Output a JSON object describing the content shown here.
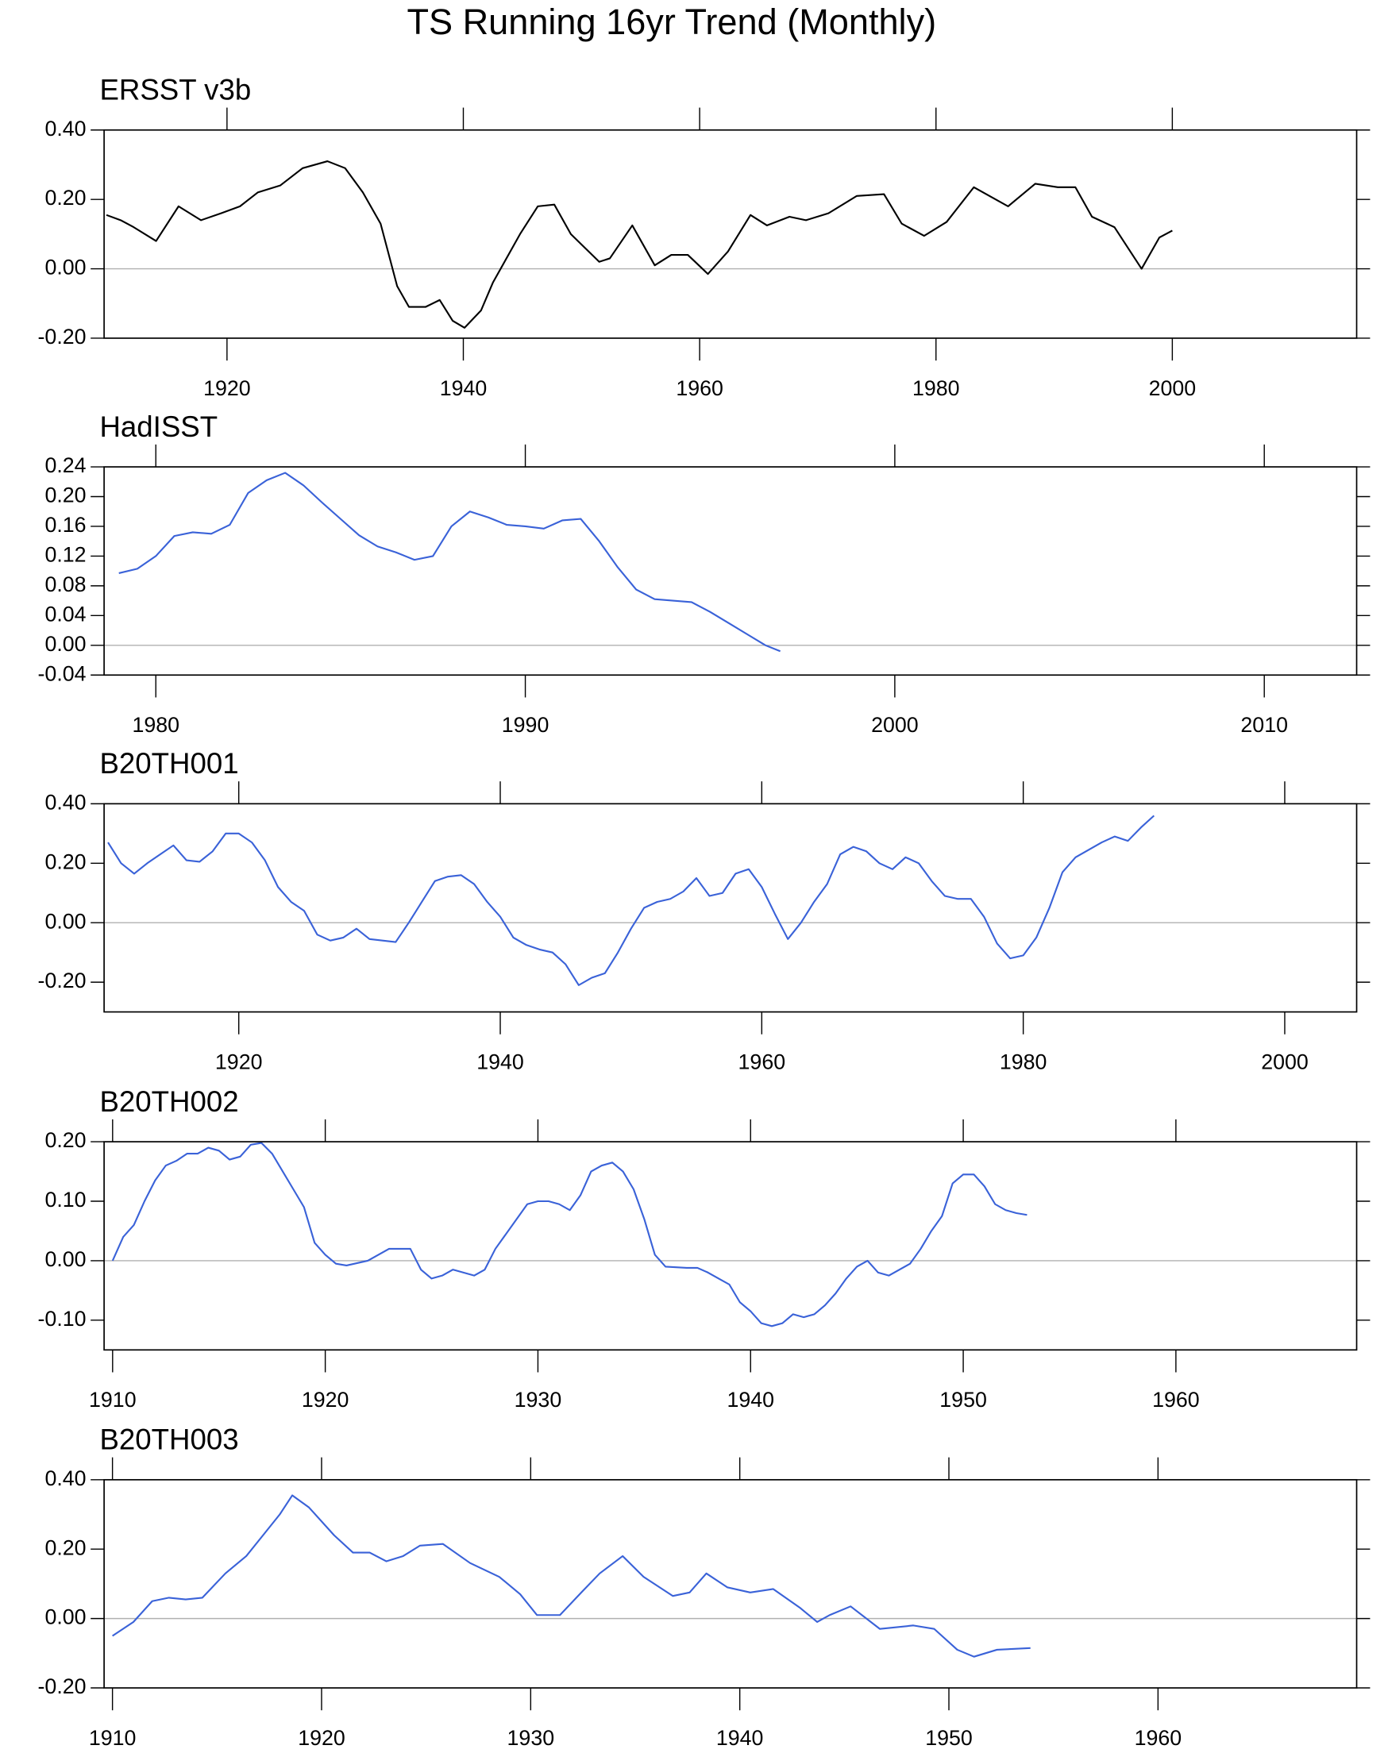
{
  "title": "TS Running 16yr Trend (Monthly)",
  "chart_data": [
    {
      "type": "line",
      "title": "ERSST v3b",
      "color": "#000000",
      "zero_line": true,
      "xlim": [
        1909.6,
        2015.6
      ],
      "xticks": [
        1920,
        1940,
        1960,
        1980,
        2000
      ],
      "ylim": [
        -0.2,
        0.4
      ],
      "yticks": [
        {
          "value": -0.2,
          "label": "-0.20"
        },
        {
          "value": 0,
          "label": "0.00"
        },
        {
          "value": 0.2,
          "label": "0.20"
        },
        {
          "value": 0.4,
          "label": "0.40"
        }
      ],
      "x": [
        1909.8,
        1911,
        1912.1,
        1914,
        1915.9,
        1917.8,
        1919.5,
        1921.1,
        1922.6,
        1924.5,
        1926.4,
        1928.5,
        1930,
        1931.5,
        1933,
        1934.4,
        1935.4,
        1936.8,
        1938,
        1939.1,
        1940.1,
        1941.5,
        1942.5,
        1944.8,
        1946.3,
        1947.7,
        1949.1,
        1951.5,
        1952.4,
        1954.3,
        1956.2,
        1957.6,
        1959,
        1960.7,
        1962.4,
        1964.3,
        1965.7,
        1967.6,
        1969,
        1970.9,
        1973.3,
        1975.6,
        1977.1,
        1979,
        1980.9,
        1983.2,
        1986.1,
        1988.4,
        1990.3,
        1991.8,
        1993.2,
        1995.1,
        1997.4,
        1998.9,
        2000
      ],
      "values": [
        0.155,
        0.14,
        0.12,
        0.08,
        0.18,
        0.14,
        0.16,
        0.18,
        0.22,
        0.24,
        0.29,
        0.31,
        0.29,
        0.22,
        0.13,
        -0.05,
        -0.11,
        -0.11,
        -0.09,
        -0.15,
        -0.17,
        -0.12,
        -0.04,
        0.1,
        0.18,
        0.185,
        0.1,
        0.02,
        0.03,
        0.125,
        0.01,
        0.04,
        0.04,
        -0.015,
        0.05,
        0.155,
        0.125,
        0.15,
        0.14,
        0.16,
        0.21,
        0.215,
        0.13,
        0.095,
        0.135,
        0.235,
        0.18,
        0.245,
        0.235,
        0.235,
        0.15,
        0.12,
        0.0,
        0.09,
        0.11
      ]
    },
    {
      "type": "line",
      "title": "HadISST",
      "color": "#3a62d8",
      "zero_line": true,
      "xlim": [
        1978.6,
        2012.5
      ],
      "xticks": [
        1980,
        1990,
        2000,
        2010
      ],
      "ylim": [
        -0.04,
        0.24
      ],
      "yticks": [
        {
          "value": -0.04,
          "label": "-0.04"
        },
        {
          "value": 0,
          "label": "0.00"
        },
        {
          "value": 0.04,
          "label": "0.04"
        },
        {
          "value": 0.08,
          "label": "0.08"
        },
        {
          "value": 0.12,
          "label": "0.12"
        },
        {
          "value": 0.16,
          "label": "0.16"
        },
        {
          "value": 0.2,
          "label": "0.20"
        },
        {
          "value": 0.24,
          "label": "0.24"
        }
      ],
      "x": [
        1979,
        1979.5,
        1980,
        1980.5,
        1981,
        1981.5,
        1982,
        1982.5,
        1983,
        1983.5,
        1984,
        1984.5,
        1985,
        1985.5,
        1986,
        1986.5,
        1987,
        1987.5,
        1988,
        1988.5,
        1989,
        1989.5,
        1990,
        1990.5,
        1991,
        1991.5,
        1992,
        1992.5,
        1993,
        1993.5,
        1994,
        1994.5,
        1995,
        1995.5,
        1996,
        1996.5,
        1996.9
      ],
      "values": [
        0.097,
        0.103,
        0.12,
        0.147,
        0.152,
        0.15,
        0.162,
        0.205,
        0.222,
        0.232,
        0.215,
        0.192,
        0.17,
        0.148,
        0.133,
        0.125,
        0.115,
        0.12,
        0.16,
        0.18,
        0.172,
        0.162,
        0.16,
        0.157,
        0.168,
        0.17,
        0.14,
        0.105,
        0.075,
        0.062,
        0.06,
        0.058,
        0.045,
        0.03,
        0.015,
        0.0,
        -0.008
      ]
    },
    {
      "type": "line",
      "title": "B20TH001",
      "color": "#3a62d8",
      "zero_line": true,
      "xlim": [
        1909.7,
        2005.5
      ],
      "xticks": [
        1920,
        1940,
        1960,
        1980,
        2000
      ],
      "ylim": [
        -0.3,
        0.4
      ],
      "yticks": [
        {
          "value": -0.2,
          "label": "-0.20"
        },
        {
          "value": 0,
          "label": "0.00"
        },
        {
          "value": 0.2,
          "label": "0.20"
        },
        {
          "value": 0.4,
          "label": "0.40"
        }
      ],
      "x": [
        1910,
        1911,
        1912,
        1913,
        1914,
        1915,
        1916,
        1917,
        1918,
        1919,
        1920,
        1921,
        1922,
        1923,
        1924,
        1925,
        1926,
        1927,
        1928,
        1929,
        1930,
        1931,
        1932,
        1933,
        1934,
        1935,
        1936,
        1937,
        1938,
        1939,
        1940,
        1941,
        1942,
        1943,
        1944,
        1945,
        1946,
        1947,
        1948,
        1949,
        1950,
        1951,
        1952,
        1953,
        1954,
        1955,
        1956,
        1957,
        1958,
        1959,
        1960,
        1961,
        1962,
        1963,
        1964,
        1965,
        1966,
        1967,
        1968,
        1969,
        1970,
        1971,
        1972,
        1973,
        1974,
        1975,
        1976,
        1977,
        1978,
        1979,
        1980,
        1981,
        1982,
        1983,
        1984,
        1985,
        1986,
        1987,
        1988,
        1989,
        1990
      ],
      "values": [
        0.27,
        0.2,
        0.165,
        0.2,
        0.23,
        0.26,
        0.21,
        0.205,
        0.24,
        0.3,
        0.3,
        0.27,
        0.21,
        0.12,
        0.07,
        0.04,
        -0.04,
        -0.06,
        -0.05,
        -0.02,
        -0.055,
        -0.06,
        -0.065,
        0.0,
        0.07,
        0.14,
        0.155,
        0.16,
        0.13,
        0.07,
        0.02,
        -0.05,
        -0.075,
        -0.09,
        -0.1,
        -0.14,
        -0.21,
        -0.185,
        -0.17,
        -0.1,
        -0.02,
        0.05,
        0.07,
        0.08,
        0.105,
        0.15,
        0.09,
        0.1,
        0.165,
        0.18,
        0.12,
        0.03,
        -0.055,
        0.0,
        0.07,
        0.13,
        0.23,
        0.255,
        0.24,
        0.2,
        0.18,
        0.22,
        0.2,
        0.14,
        0.09,
        0.08,
        0.08,
        0.02,
        -0.07,
        -0.12,
        -0.11,
        -0.05,
        0.05,
        0.17,
        0.22,
        0.245,
        0.27,
        0.29,
        0.275,
        0.32,
        0.36
      ]
    },
    {
      "type": "line",
      "title": "B20TH002",
      "color": "#3a62d8",
      "zero_line": true,
      "xlim": [
        1909.6,
        1968.5
      ],
      "xticks": [
        1910,
        1920,
        1930,
        1940,
        1950,
        1960
      ],
      "ylim": [
        -0.15,
        0.2
      ],
      "yticks": [
        {
          "value": -0.1,
          "label": "-0.10"
        },
        {
          "value": 0,
          "label": "0.00"
        },
        {
          "value": 0.1,
          "label": "0.10"
        },
        {
          "value": 0.2,
          "label": "0.20"
        }
      ],
      "x": [
        1910,
        1910.5,
        1911,
        1911.5,
        1912,
        1912.5,
        1913,
        1913.5,
        1914,
        1914.5,
        1915,
        1915.5,
        1916,
        1916.5,
        1917,
        1917.5,
        1918,
        1918.5,
        1919,
        1919.5,
        1920,
        1920.5,
        1921,
        1922,
        1922.5,
        1923,
        1924,
        1924.5,
        1925,
        1925.5,
        1926,
        1926.5,
        1927,
        1927.5,
        1928,
        1929,
        1929.5,
        1930,
        1930.5,
        1931,
        1931.5,
        1932,
        1932.5,
        1933,
        1933.5,
        1934,
        1934.5,
        1935,
        1935.5,
        1936,
        1937,
        1937.5,
        1938,
        1938.5,
        1939,
        1939.5,
        1940,
        1940.5,
        1941,
        1941.5,
        1942,
        1942.5,
        1943,
        1943.5,
        1944,
        1944.5,
        1945,
        1945.5,
        1946,
        1946.5,
        1947,
        1947.5,
        1948,
        1948.5,
        1949,
        1949.5,
        1950,
        1950.5,
        1951,
        1951.5,
        1952,
        1952.5,
        1953
      ],
      "values": [
        0.0,
        0.04,
        0.06,
        0.1,
        0.135,
        0.16,
        0.168,
        0.18,
        0.18,
        0.19,
        0.185,
        0.17,
        0.175,
        0.195,
        0.198,
        0.18,
        0.15,
        0.12,
        0.09,
        0.03,
        0.01,
        -0.005,
        -0.008,
        0.0,
        0.01,
        0.02,
        0.02,
        -0.015,
        -0.03,
        -0.025,
        -0.015,
        -0.02,
        -0.025,
        -0.015,
        0.02,
        0.07,
        0.095,
        0.1,
        0.1,
        0.095,
        0.085,
        0.11,
        0.15,
        0.16,
        0.165,
        0.15,
        0.12,
        0.07,
        0.01,
        -0.01,
        -0.012,
        -0.012,
        -0.02,
        -0.03,
        -0.04,
        -0.07,
        -0.085,
        -0.105,
        -0.11,
        -0.105,
        -0.09,
        -0.095,
        -0.09,
        -0.075,
        -0.055,
        -0.03,
        -0.01,
        0.0,
        -0.02,
        -0.025,
        -0.015,
        -0.005,
        0.02,
        0.05,
        0.075,
        0.13,
        0.145,
        0.145,
        0.125,
        0.095,
        0.085,
        0.08,
        0.077
      ]
    },
    {
      "type": "line",
      "title": "B20TH003",
      "color": "#3a62d8",
      "zero_line": true,
      "xlim": [
        1909.6,
        1969.5
      ],
      "xticks": [
        1910,
        1920,
        1930,
        1940,
        1950,
        1960
      ],
      "ylim": [
        -0.2,
        0.4
      ],
      "yticks": [
        {
          "value": -0.2,
          "label": "-0.20"
        },
        {
          "value": 0,
          "label": "0.00"
        },
        {
          "value": 0.2,
          "label": "0.20"
        },
        {
          "value": 0.4,
          "label": "0.40"
        }
      ],
      "x": [
        1910,
        1911,
        1911.9,
        1912.7,
        1913.5,
        1914.3,
        1915.4,
        1916.4,
        1917.2,
        1918,
        1918.6,
        1919.4,
        1920.6,
        1921.5,
        1922.3,
        1923.1,
        1923.9,
        1924.7,
        1925.8,
        1927.1,
        1928.5,
        1929.5,
        1930.3,
        1931.4,
        1932.5,
        1933.3,
        1934.4,
        1935.4,
        1936.8,
        1937.6,
        1938.4,
        1939.4,
        1940.5,
        1941.6,
        1942.9,
        1943.7,
        1944.3,
        1945.3,
        1946.7,
        1948.3,
        1949.3,
        1950.4,
        1951.2,
        1952.3,
        1953.9
      ],
      "values": [
        -0.05,
        -0.01,
        0.05,
        0.06,
        0.055,
        0.06,
        0.13,
        0.18,
        0.24,
        0.3,
        0.355,
        0.32,
        0.24,
        0.19,
        0.19,
        0.165,
        0.18,
        0.21,
        0.215,
        0.16,
        0.12,
        0.07,
        0.01,
        0.01,
        0.08,
        0.13,
        0.18,
        0.12,
        0.065,
        0.075,
        0.13,
        0.09,
        0.075,
        0.085,
        0.03,
        -0.01,
        0.01,
        0.035,
        -0.03,
        -0.02,
        -0.03,
        -0.09,
        -0.11,
        -0.09,
        -0.085
      ]
    }
  ]
}
